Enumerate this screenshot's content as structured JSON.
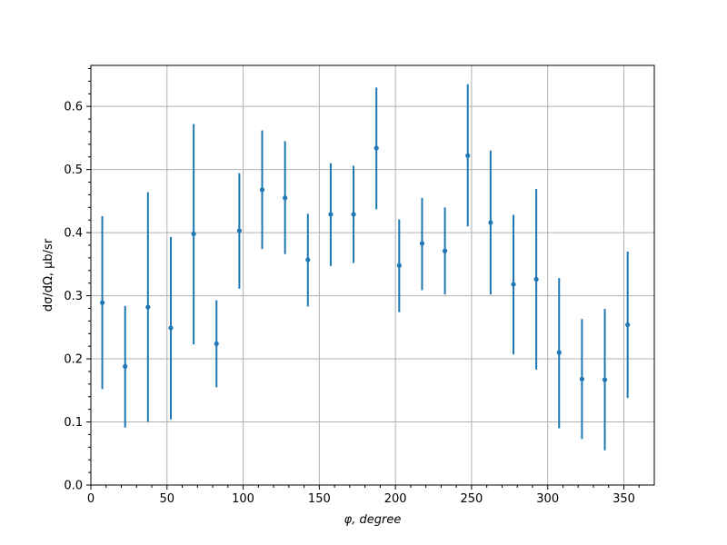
{
  "chart_data": {
    "type": "scatter",
    "xlabel": "φ, degree",
    "ylabel": "dσ/dΩ, μb/sr",
    "xlim": [
      0,
      370
    ],
    "ylim": [
      0,
      0.665
    ],
    "x_ticks": [
      0,
      50,
      100,
      150,
      200,
      250,
      300,
      350
    ],
    "y_ticks": [
      0.0,
      0.1,
      0.2,
      0.3,
      0.4,
      0.5,
      0.6
    ],
    "x_tick_labels": [
      "0",
      "50",
      "100",
      "150",
      "200",
      "250",
      "300",
      "350"
    ],
    "y_tick_labels": [
      "0.0",
      "0.1",
      "0.2",
      "0.3",
      "0.4",
      "0.5",
      "0.6"
    ],
    "grid": true,
    "color": "#1f77b4",
    "series": [
      {
        "x": [
          7.5,
          22.5,
          37.5,
          52.5,
          67.5,
          82.5,
          97.5,
          112.5,
          127.5,
          142.5,
          157.5,
          172.5,
          187.5,
          202.5,
          217.5,
          232.5,
          247.5,
          262.5,
          277.5,
          292.5,
          307.5,
          322.5,
          337.5,
          352.5
        ],
        "y": [
          0.289,
          0.188,
          0.282,
          0.249,
          0.398,
          0.224,
          0.403,
          0.468,
          0.455,
          0.357,
          0.429,
          0.429,
          0.534,
          0.348,
          0.383,
          0.371,
          0.522,
          0.416,
          0.318,
          0.326,
          0.21,
          0.168,
          0.167,
          0.254
        ],
        "y_low": [
          0.152,
          0.091,
          0.1,
          0.104,
          0.223,
          0.155,
          0.311,
          0.374,
          0.366,
          0.283,
          0.347,
          0.352,
          0.437,
          0.274,
          0.309,
          0.302,
          0.41,
          0.302,
          0.207,
          0.183,
          0.09,
          0.073,
          0.055,
          0.138
        ],
        "y_high": [
          0.426,
          0.284,
          0.464,
          0.393,
          0.572,
          0.293,
          0.494,
          0.562,
          0.545,
          0.43,
          0.51,
          0.506,
          0.63,
          0.421,
          0.455,
          0.44,
          0.635,
          0.53,
          0.428,
          0.469,
          0.328,
          0.263,
          0.279,
          0.37
        ]
      }
    ]
  }
}
